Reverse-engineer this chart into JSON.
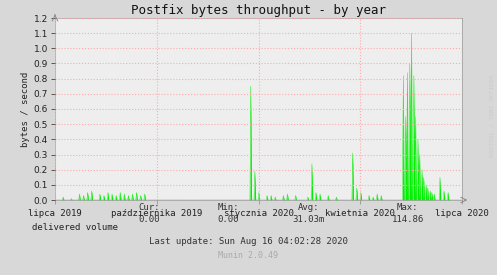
{
  "title": "Postfix bytes throughput - by year",
  "ylabel": "bytes / second",
  "bg_color": "#d8d8d8",
  "plot_bg_color": "#eeeeee",
  "grid_color": "#ffaaaa",
  "line_color": "#00ee00",
  "ylim": [
    0,
    1.2
  ],
  "xtick_labels": [
    "lipca 2019",
    "października 2019",
    "stycznia 2020",
    "kwietnia 2020",
    "lipca 2020"
  ],
  "xtick_positions": [
    0.0,
    0.25,
    0.5,
    0.75,
    1.0
  ],
  "legend_label": "delivered volume",
  "legend_color": "#00cc00",
  "cur_label": "Cur:",
  "cur_val": "0.00",
  "min_label": "Min:",
  "min_val": "0.00",
  "avg_label": "Avg:",
  "avg_val": "31.03m",
  "max_label": "Max:",
  "max_val": "114.86",
  "last_update": "Last update: Sun Aug 16 04:02:28 2020",
  "munin_version": "Munin 2.0.49",
  "watermark": "RRDTOOL / TOBI OETIKER"
}
